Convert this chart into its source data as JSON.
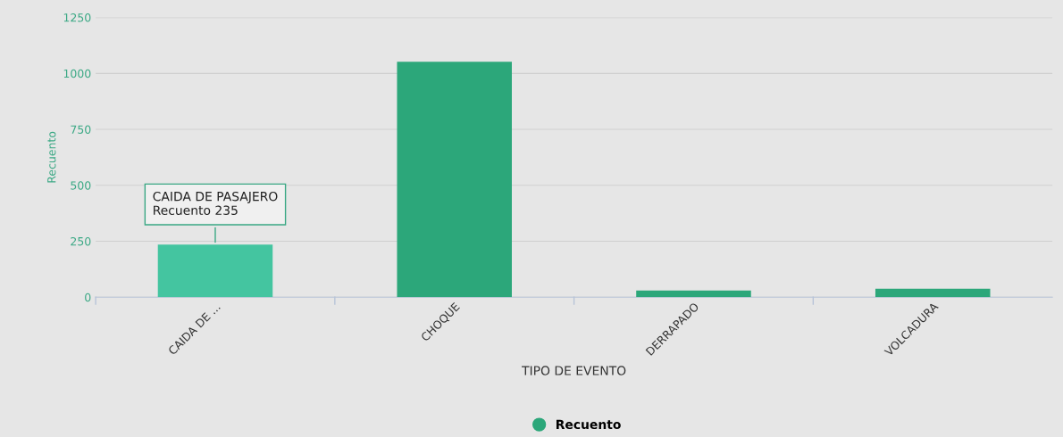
{
  "chart_data": {
    "type": "bar",
    "xlabel": "TIPO DE EVENTO",
    "ylabel": "Recuento",
    "categories": [
      "CAIDA DE ...",
      "CHOQUE",
      "DERRAPADO",
      "VOLCADURA"
    ],
    "series": [
      {
        "name": "Recuento",
        "color": "#2ca77a",
        "colors": [
          "#44c5a0",
          "#2ca77a",
          "#2ca77a",
          "#2ca77a"
        ],
        "values": [
          235,
          1052,
          30,
          38
        ]
      }
    ],
    "ylim": [
      0,
      1250
    ],
    "yticks": [
      0,
      250,
      500,
      750,
      1000,
      1250
    ],
    "grid": "y",
    "legend": "bottom",
    "annotations": [
      {
        "text": "CAIDA DE PASAJERO\nRecuento 235",
        "x": "CAIDA DE ...",
        "y": 235
      }
    ]
  }
}
